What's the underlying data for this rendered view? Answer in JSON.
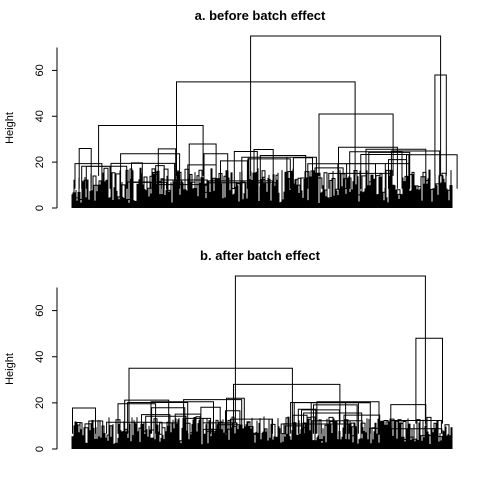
{
  "chart_data": [
    {
      "type": "dendrogram",
      "title": "a. before batch effect",
      "ylabel": "Height",
      "ylim": [
        0,
        75
      ],
      "yticks": [
        0,
        20,
        40,
        60
      ],
      "root_height": 75,
      "merges": [
        {
          "height": 75,
          "left": [
            0.0,
            0.94
          ],
          "right": [
            0.94,
            1.0
          ]
        },
        {
          "height": 55,
          "left": [
            0.0,
            0.55
          ],
          "right": [
            0.55,
            0.94
          ]
        },
        {
          "height": 36,
          "left": [
            0.0,
            0.14
          ],
          "right": [
            0.14,
            0.55
          ]
        },
        {
          "height": 41,
          "left": [
            0.55,
            0.75
          ],
          "right": [
            0.75,
            0.94
          ]
        },
        {
          "height": 58,
          "left": [
            0.94,
            0.97
          ],
          "right": [
            0.97,
            1.0
          ]
        }
      ],
      "dense_band_max": 28,
      "color": "#000000"
    },
    {
      "type": "dendrogram",
      "title": "b. after batch effect",
      "ylabel": "Height",
      "ylim": [
        0,
        75
      ],
      "yticks": [
        0,
        20,
        40,
        60
      ],
      "root_height": 75,
      "merges": [
        {
          "height": 75,
          "left": [
            0.0,
            0.86
          ],
          "right": [
            0.86,
            1.0
          ]
        },
        {
          "height": 35,
          "left": [
            0.0,
            0.3
          ],
          "right": [
            0.3,
            0.86
          ]
        },
        {
          "height": 48,
          "left": [
            0.86,
            0.95
          ],
          "right": [
            0.95,
            1.0
          ]
        },
        {
          "height": 28,
          "left": [
            0.3,
            0.55
          ],
          "right": [
            0.55,
            0.86
          ]
        }
      ],
      "dense_band_max": 22,
      "color": "#000000"
    }
  ]
}
